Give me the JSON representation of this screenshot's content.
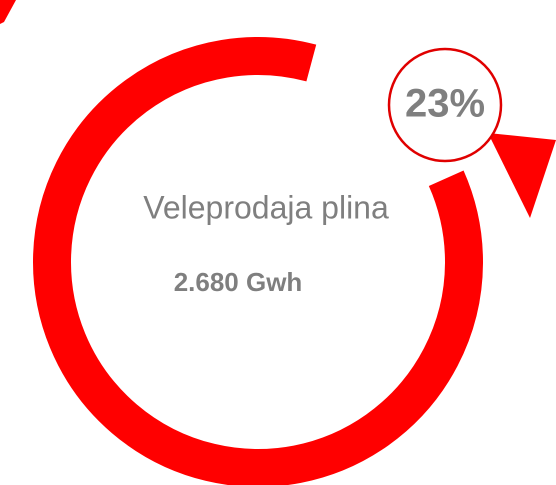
{
  "badge": {
    "label": "23%"
  },
  "title": "Veleprodaja plina",
  "amount": "2.680 Gwh"
}
